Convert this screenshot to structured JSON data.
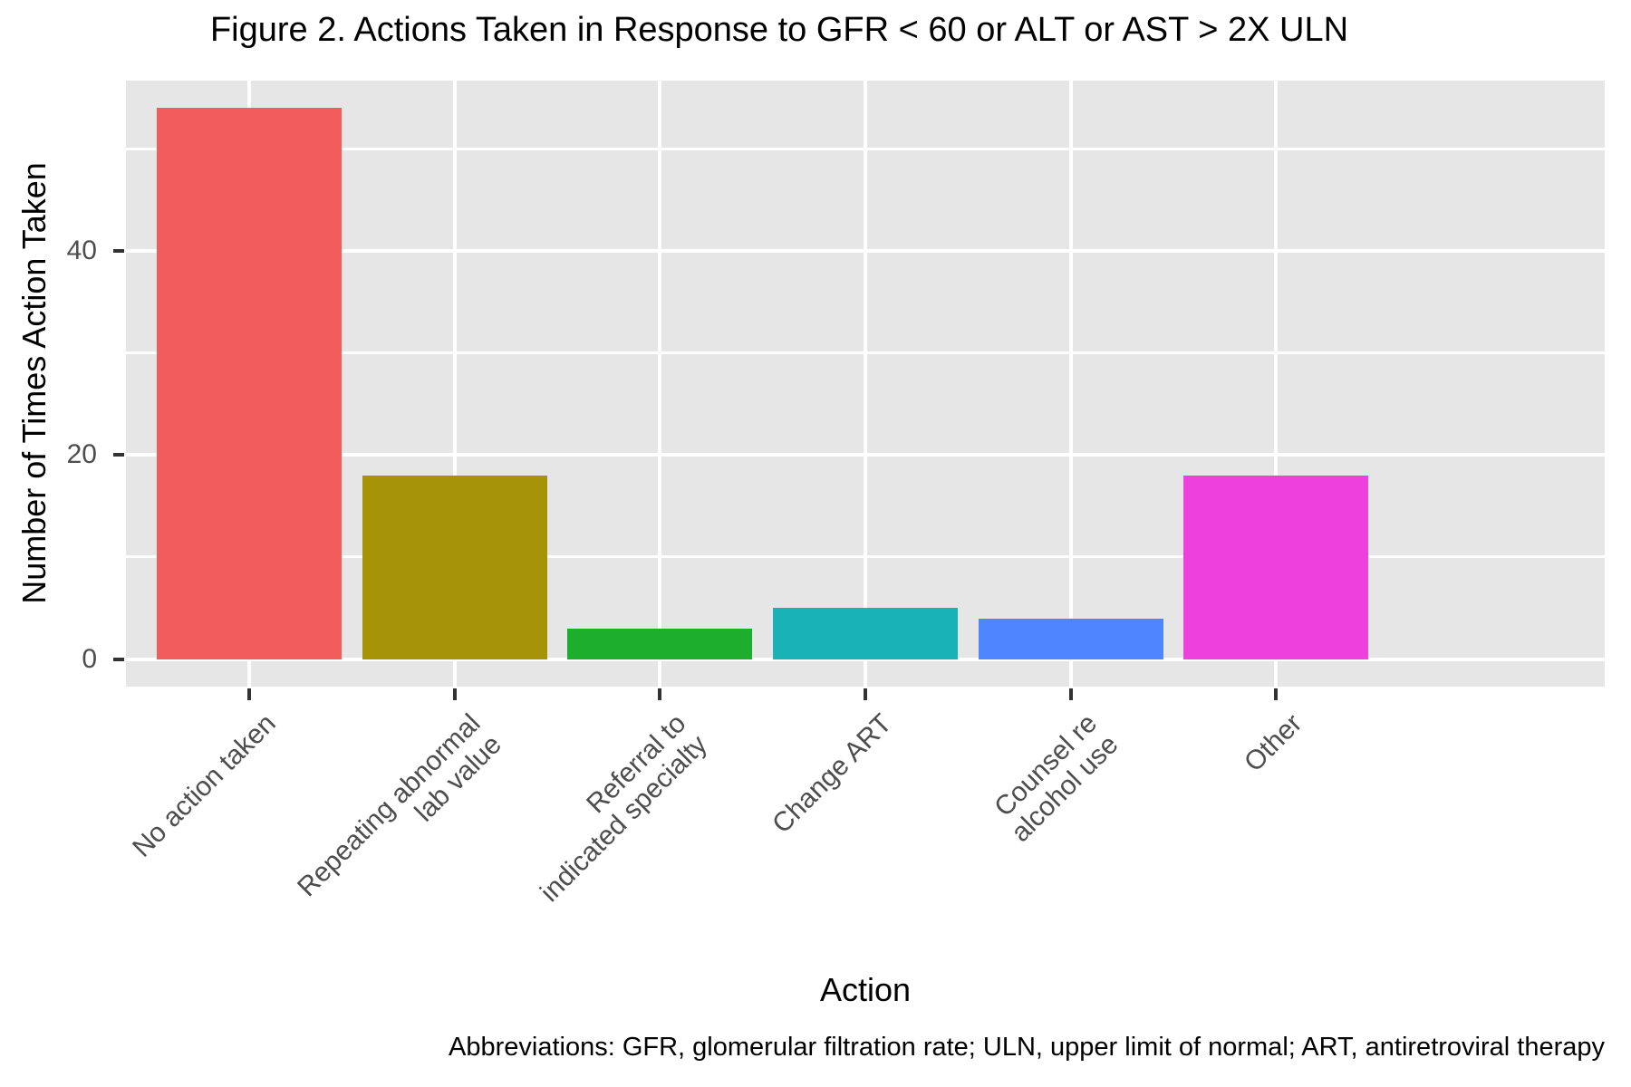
{
  "chart_data": {
    "type": "bar",
    "title": "Figure 2. Actions Taken in Response to GFR < 60 or ALT or AST > 2X ULN",
    "xlabel": "Action",
    "ylabel": "Number of Times Action Taken",
    "caption": "Abbreviations: GFR, glomerular filtration rate; ULN, upper limit of normal; ART, antiretroviral therapy",
    "categories": [
      "No action taken",
      "Repeating abnormal\nlab value",
      "Referral to\nindicated specialty",
      "Change ART",
      "Counsel re\nalcohol use",
      "Other"
    ],
    "values": [
      54,
      18,
      3,
      5,
      4,
      18
    ],
    "bar_colors": [
      "#F25C5C",
      "#A69308",
      "#1CAE2C",
      "#1AB3B5",
      "#4E86FF",
      "#EE40DC"
    ],
    "ytick_labels": [
      "0",
      "20",
      "40"
    ],
    "yticks": [
      0,
      20,
      40
    ],
    "minor_yticks": [
      10,
      30,
      50
    ],
    "ylim": [
      -2.7,
      56.7
    ],
    "legend_position": "none",
    "grid": "white major and minor horizontal lines, white major vertical lines on gray panel",
    "panel_bg": "#E6E6E6",
    "grid_color": "#FFFFFF",
    "tick_mark_color": "#333333",
    "tick_label_color": "#4D4D4D",
    "bar_width_fraction": 0.9
  }
}
